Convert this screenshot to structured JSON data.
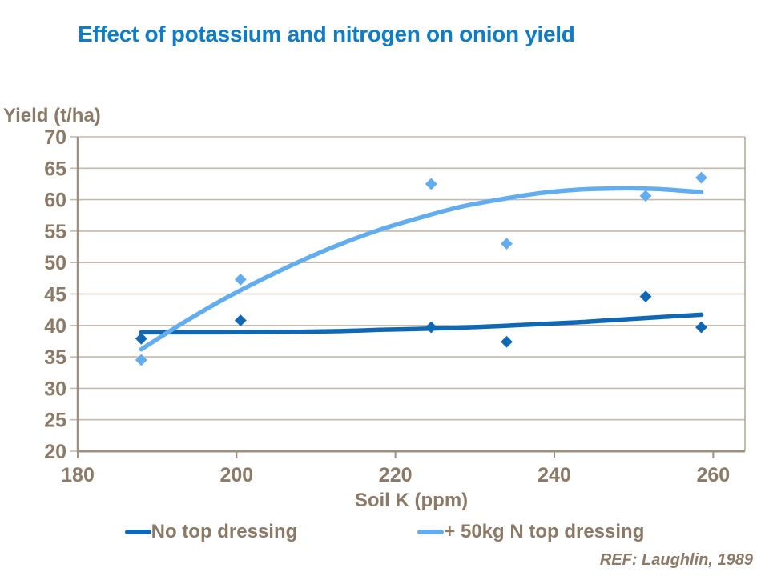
{
  "colors": {
    "title_color": "#0E7CC7",
    "text_color": "#8A7A67",
    "gridline_color": "#C4BAAE",
    "axis_color": "#9C9082",
    "border_color": "#B5AA9C",
    "background": "#FFFFFF"
  },
  "chart_data": {
    "type": "scatter",
    "title": "Effect of potassium and nitrogen on onion yield",
    "xlabel": "Soil K (ppm)",
    "ylabel": "Yield (t/ha)",
    "xlim": [
      180,
      264
    ],
    "ylim": [
      20,
      70
    ],
    "x_ticks": [
      180,
      200,
      220,
      240,
      260
    ],
    "y_ticks": [
      20,
      25,
      30,
      35,
      40,
      45,
      50,
      55,
      60,
      65,
      70
    ],
    "grid": "horizontal-major",
    "legend_position": "bottom",
    "marker": "diamond",
    "series": [
      {
        "name": "No top dressing",
        "color": "#1068B3",
        "points": [
          [
            188,
            37.9
          ],
          [
            200.5,
            40.8
          ],
          [
            224.5,
            39.7
          ],
          [
            234,
            37.4
          ],
          [
            251.5,
            44.6
          ],
          [
            258.5,
            39.7
          ]
        ],
        "trend": [
          [
            188,
            38.9
          ],
          [
            193,
            38.9
          ],
          [
            198,
            38.9
          ],
          [
            203,
            38.95
          ],
          [
            208,
            39.0
          ],
          [
            213,
            39.1
          ],
          [
            218,
            39.3
          ],
          [
            223,
            39.45
          ],
          [
            228,
            39.65
          ],
          [
            233,
            39.9
          ],
          [
            238,
            40.2
          ],
          [
            243,
            40.5
          ],
          [
            248,
            40.9
          ],
          [
            253,
            41.3
          ],
          [
            258.5,
            41.7
          ]
        ]
      },
      {
        "name": "+ 50kg N top dressing",
        "color": "#63ADEF",
        "points": [
          [
            188,
            34.5
          ],
          [
            200.5,
            47.3
          ],
          [
            224.5,
            62.5
          ],
          [
            234,
            53.0
          ],
          [
            251.5,
            60.6
          ],
          [
            258.5,
            63.5
          ]
        ],
        "trend": [
          [
            188,
            36.2
          ],
          [
            193,
            40.2
          ],
          [
            198,
            43.9
          ],
          [
            203,
            47.2
          ],
          [
            208,
            50.2
          ],
          [
            213,
            52.9
          ],
          [
            218,
            55.2
          ],
          [
            223,
            57.1
          ],
          [
            228,
            58.8
          ],
          [
            233,
            60.0
          ],
          [
            238,
            61.0
          ],
          [
            243,
            61.6
          ],
          [
            248,
            61.8
          ],
          [
            253,
            61.7
          ],
          [
            258.5,
            61.2
          ]
        ]
      }
    ],
    "ref": "REF: Laughlin, 1989"
  }
}
